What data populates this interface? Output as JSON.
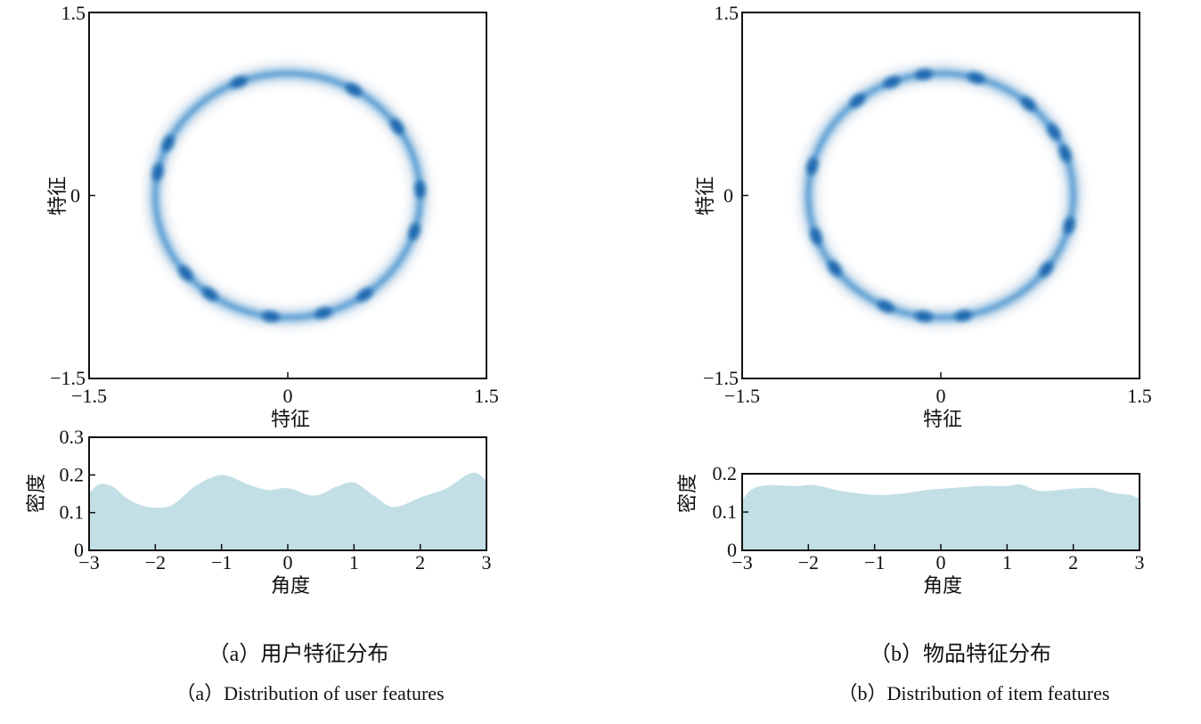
{
  "figure": {
    "panels": [
      {
        "id": "a",
        "caption_zh": "（a）用户特征分布",
        "caption_en": "（a）Distribution of user features"
      },
      {
        "id": "b",
        "caption_zh": "（b）物品特征分布",
        "caption_en": "（b）Distribution of item features"
      }
    ]
  },
  "colors": {
    "ring_halo": "#dce6ef",
    "ring_light": "#b3d2ea",
    "ring_mid": "#4c93cc",
    "ring_dark": "#0a5ea8",
    "density_fill": "#c3dfe6",
    "axis": "#111111"
  },
  "chart_data": [
    {
      "type": "heatmap",
      "kind": "2d-kde-ring",
      "panel": "a",
      "xlabel": "特征",
      "ylabel": "特征",
      "xlim": [
        -1.5,
        1.5
      ],
      "ylim": [
        -1.5,
        1.5
      ],
      "xticks": [
        -1.5,
        0,
        1.5
      ],
      "yticks": [
        -1.5,
        0,
        1.5
      ],
      "xtick_labels": [
        "−1.5",
        "0",
        "1.5"
      ],
      "ytick_labels": [
        "−1.5",
        "0",
        "1.5"
      ],
      "radius": 1.0,
      "dense_angles": [
        0.05,
        -0.3,
        -0.95,
        -1.3,
        1.05,
        0.6,
        2.95,
        2.7,
        -2.45,
        -1.7,
        1.95,
        -2.2
      ]
    },
    {
      "type": "area",
      "kind": "kde",
      "panel": "a",
      "xlabel": "角度",
      "ylabel": "密度",
      "xlim": [
        -3,
        3
      ],
      "ylim": [
        0,
        0.3
      ],
      "xticks": [
        -3,
        -2,
        -1,
        0,
        1,
        2,
        3
      ],
      "yticks": [
        0,
        0.1,
        0.2,
        0.3
      ],
      "xtick_labels": [
        "−3",
        "−2",
        "−1",
        "0",
        "1",
        "2",
        "3"
      ],
      "ytick_labels": [
        "0",
        "0.1",
        "0.2",
        "0.3"
      ],
      "x": [
        -3.0,
        -2.85,
        -2.65,
        -2.4,
        -2.1,
        -1.75,
        -1.4,
        -1.0,
        -0.6,
        -0.3,
        0.0,
        0.4,
        0.75,
        1.0,
        1.3,
        1.6,
        2.0,
        2.4,
        2.7,
        2.85,
        3.0
      ],
      "y": [
        0.15,
        0.175,
        0.17,
        0.135,
        0.115,
        0.12,
        0.17,
        0.2,
        0.175,
        0.16,
        0.165,
        0.145,
        0.17,
        0.18,
        0.145,
        0.115,
        0.14,
        0.165,
        0.2,
        0.205,
        0.185
      ]
    },
    {
      "type": "heatmap",
      "kind": "2d-kde-ring",
      "panel": "b",
      "xlabel": "特征",
      "ylabel": "特征",
      "xlim": [
        -1.5,
        1.5
      ],
      "ylim": [
        -1.5,
        1.5
      ],
      "xticks": [
        -1.5,
        0,
        1.5
      ],
      "yticks": [
        -1.5,
        0,
        1.5
      ],
      "xtick_labels": [
        "−1.5",
        "0",
        "1.5"
      ],
      "ytick_labels": [
        "−1.5",
        "0",
        "1.5"
      ],
      "radius": 1.0,
      "dense_angles": [
        0.35,
        -0.25,
        -0.65,
        -1.4,
        -1.7,
        -2.0,
        -2.5,
        -2.8,
        2.9,
        2.25,
        1.95,
        1.7,
        1.3,
        0.85,
        0.55
      ]
    },
    {
      "type": "area",
      "kind": "kde",
      "panel": "b",
      "xlabel": "角度",
      "ylabel": "密度",
      "xlim": [
        -3,
        3
      ],
      "ylim": [
        0,
        0.2
      ],
      "xticks": [
        -3,
        -2,
        -1,
        0,
        1,
        2,
        3
      ],
      "yticks": [
        0,
        0.1,
        0.2
      ],
      "xtick_labels": [
        "−3",
        "−2",
        "−1",
        "0",
        "1",
        "2",
        "3"
      ],
      "ytick_labels": [
        "0",
        "0.1",
        "0.2"
      ],
      "x": [
        -3.0,
        -2.85,
        -2.6,
        -2.2,
        -1.9,
        -1.5,
        -1.0,
        -0.6,
        -0.2,
        0.2,
        0.6,
        1.0,
        1.2,
        1.5,
        1.9,
        2.3,
        2.6,
        2.85,
        3.0
      ],
      "y": [
        0.13,
        0.16,
        0.17,
        0.168,
        0.17,
        0.155,
        0.145,
        0.148,
        0.158,
        0.163,
        0.168,
        0.168,
        0.172,
        0.155,
        0.16,
        0.163,
        0.15,
        0.145,
        0.135
      ]
    }
  ]
}
